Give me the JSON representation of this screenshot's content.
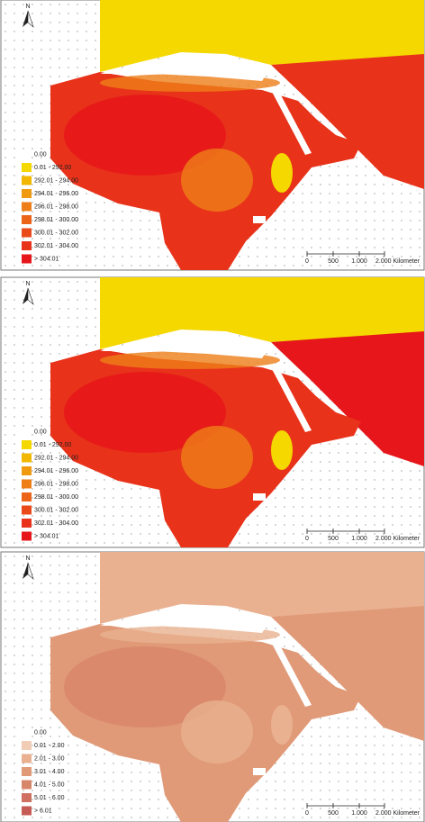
{
  "panels": [
    {
      "north": "N",
      "legend": [
        {
          "label": "0.00",
          "color": "#ffffff"
        },
        {
          "label": "0.01 - 292.00",
          "color": "#f5d800"
        },
        {
          "label": "292.01 - 294.00",
          "color": "#f2b800"
        },
        {
          "label": "294.01 - 296.00",
          "color": "#f09a10"
        },
        {
          "label": "296.01 - 298.00",
          "color": "#ee7e18"
        },
        {
          "label": "298.01 - 300.00",
          "color": "#ec6418"
        },
        {
          "label": "300.01 - 302.00",
          "color": "#ea4a1a"
        },
        {
          "label": "302.01 - 304.00",
          "color": "#e8321a"
        },
        {
          "label": "> 304.01",
          "color": "#e6161a"
        }
      ],
      "scale": [
        "0",
        "500",
        "1.000",
        "2.000 Kilometer"
      ]
    },
    {
      "north": "N",
      "legend": [
        {
          "label": "0.00",
          "color": "#ffffff"
        },
        {
          "label": "0.01 - 292.00",
          "color": "#f5d800"
        },
        {
          "label": "292.01 - 294.00",
          "color": "#f2b800"
        },
        {
          "label": "294.01 - 296.00",
          "color": "#f09a10"
        },
        {
          "label": "296.01 - 298.00",
          "color": "#ee7e18"
        },
        {
          "label": "298.01 - 300.00",
          "color": "#ec6418"
        },
        {
          "label": "300.01 - 302.00",
          "color": "#ea4a1a"
        },
        {
          "label": "302.01 - 304.00",
          "color": "#e8321a"
        },
        {
          "label": "> 304.01",
          "color": "#e6161a"
        }
      ],
      "scale": [
        "0",
        "500",
        "1.000",
        "2.000 Kilometer"
      ]
    },
    {
      "north": "N",
      "legend": [
        {
          "label": "0.00",
          "color": "#ffffff"
        },
        {
          "label": "0.01 - 2.00",
          "color": "#f2cdb6"
        },
        {
          "label": "2.01 - 3.00",
          "color": "#e9b190"
        },
        {
          "label": "3.01 - 4.00",
          "color": "#e09a78"
        },
        {
          "label": "4.01 - 5.00",
          "color": "#d8866a"
        },
        {
          "label": "5.01 - 6.00",
          "color": "#cf7060"
        },
        {
          "label": "> 6.01",
          "color": "#c65a55"
        }
      ],
      "scale": [
        "0",
        "500",
        "1.000",
        "2.000 Kilometer"
      ]
    }
  ]
}
